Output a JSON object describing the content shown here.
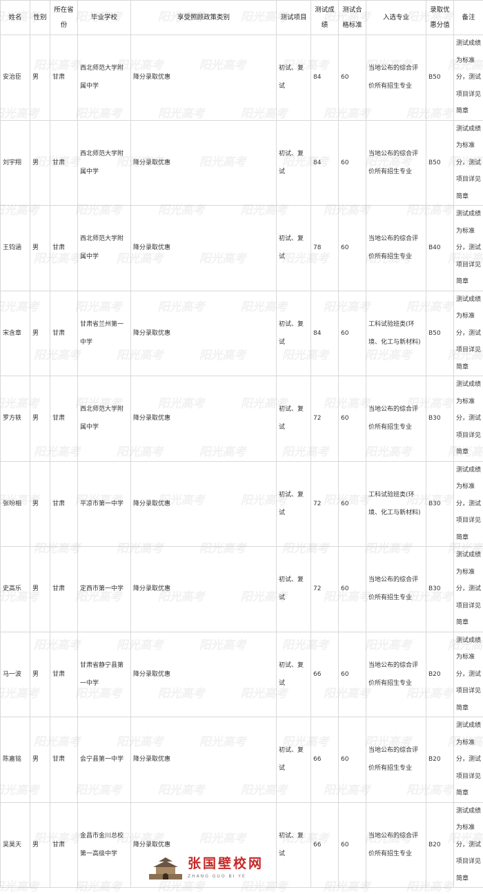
{
  "headers": [
    "姓名",
    "性别",
    "所在省份",
    "毕业学校",
    "享受照顾政策类别",
    "测试项目",
    "测试成绩",
    "测试合格标准",
    "入选专业",
    "录取优惠分值",
    "备注"
  ],
  "rows": [
    {
      "name": "安治臣",
      "gender": "男",
      "province": "甘肃",
      "school": "西北师范大学附属中学",
      "policy": "降分录取优惠",
      "test": "初试、复试",
      "score": "84",
      "standard": "60",
      "major": "当地公布的综合评价所有招生专业",
      "bonus": "B50",
      "remark": "测试成绩为标准分，测试项目详见简章"
    },
    {
      "name": "刘宇翔",
      "gender": "男",
      "province": "甘肃",
      "school": "西北师范大学附属中学",
      "policy": "降分录取优惠",
      "test": "初试、复试",
      "score": "84",
      "standard": "60",
      "major": "当地公布的综合评价所有招生专业",
      "bonus": "B50",
      "remark": "测试成绩为标准分，测试项目详见简章"
    },
    {
      "name": "王钧涵",
      "gender": "男",
      "province": "甘肃",
      "school": "西北师范大学附属中学",
      "policy": "降分录取优惠",
      "test": "初试、复试",
      "score": "78",
      "standard": "60",
      "major": "当地公布的综合评价所有招生专业",
      "bonus": "B40",
      "remark": "测试成绩为标准分，测试项目详见简章"
    },
    {
      "name": "宋含章",
      "gender": "男",
      "province": "甘肃",
      "school": "甘肃省兰州第一中学",
      "policy": "降分录取优惠",
      "test": "初试、复试",
      "score": "84",
      "standard": "60",
      "major": "工科试验班类(环境、化工与新材料)",
      "bonus": "B50",
      "remark": "测试成绩为标准分，测试项目详见简章"
    },
    {
      "name": "罗方轶",
      "gender": "男",
      "province": "甘肃",
      "school": "西北师范大学附属中学",
      "policy": "降分录取优惠",
      "test": "初试、复试",
      "score": "72",
      "standard": "60",
      "major": "当地公布的综合评价所有招生专业",
      "bonus": "B30",
      "remark": "测试成绩为标准分，测试项目详见简章"
    },
    {
      "name": "张吩相",
      "gender": "男",
      "province": "甘肃",
      "school": "平凉市第一中学",
      "policy": "降分录取优惠",
      "test": "初试、复试",
      "score": "72",
      "standard": "60",
      "major": "工科试验班类(环境、化工与新材料)",
      "bonus": "B30",
      "remark": "测试成绩为标准分，测试项目详见简章"
    },
    {
      "name": "史高乐",
      "gender": "男",
      "province": "甘肃",
      "school": "定西市第一中学",
      "policy": "降分录取优惠",
      "test": "初试、复试",
      "score": "72",
      "standard": "60",
      "major": "当地公布的综合评价所有招生专业",
      "bonus": "B30",
      "remark": "测试成绩为标准分，测试项目详见简章"
    },
    {
      "name": "马一波",
      "gender": "男",
      "province": "甘肃",
      "school": "甘肃省静宁县第一中学",
      "policy": "降分录取优惠",
      "test": "初试、复试",
      "score": "66",
      "standard": "60",
      "major": "当地公布的综合评价所有招生专业",
      "bonus": "B20",
      "remark": "测试成绩为标准分，测试项目详见简章"
    },
    {
      "name": "陈嘉铭",
      "gender": "男",
      "province": "甘肃",
      "school": "会宁县第一中学",
      "policy": "降分录取优惠",
      "test": "初试、复试",
      "score": "66",
      "standard": "60",
      "major": "当地公布的综合评价所有招生专业",
      "bonus": "B20",
      "remark": "测试成绩为标准分，测试项目详见简章"
    },
    {
      "name": "吴昊天",
      "gender": "男",
      "province": "甘肃",
      "school": "金昌市金川总校第一高级中学",
      "policy": "降分录取优惠",
      "test": "初试、复试",
      "score": "66",
      "standard": "60",
      "major": "当地公布的综合评价所有招生专业",
      "bonus": "B20",
      "remark": "测试成绩为标准分，测试项目详见简章"
    }
  ],
  "watermark": "阳光高考",
  "logo": {
    "brand": "张国壁校网",
    "sub": "ZHANG GUO BI YE"
  }
}
